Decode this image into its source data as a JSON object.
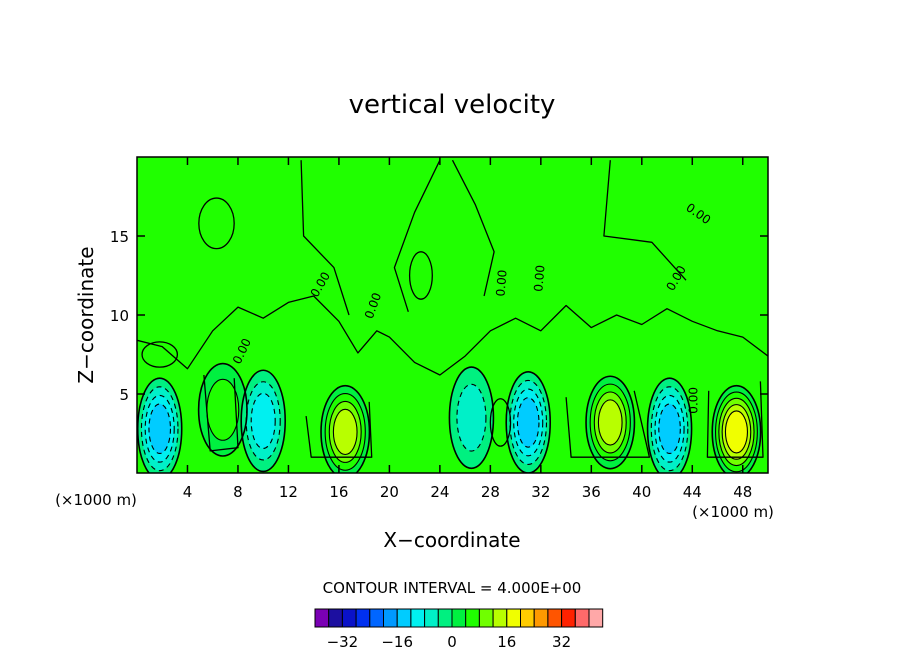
{
  "chart_data": {
    "type": "heatmap",
    "title": "vertical velocity",
    "xlabel": "X−coordinate",
    "ylabel": "Z−coordinate",
    "x_unit": "(×1000 m)",
    "z_unit": "(×1000 m)",
    "xlim": [
      0,
      50
    ],
    "ylim": [
      0,
      20
    ],
    "x_ticks": [
      4,
      8,
      12,
      16,
      20,
      24,
      28,
      32,
      36,
      40,
      44,
      48
    ],
    "y_ticks": [
      5,
      10,
      15
    ],
    "contour_interval_label": "CONTOUR INTERVAL = 4.000E+00",
    "contour_interval": 4,
    "zero_contour_label": "0.00",
    "colorbar": {
      "levels": [
        -40,
        -36,
        -32,
        -28,
        -24,
        -20,
        -16,
        -12,
        -8,
        -4,
        0,
        4,
        8,
        12,
        16,
        20,
        24,
        28,
        32,
        36,
        40
      ],
      "colors": [
        "#7a00b4",
        "#1c0fa0",
        "#0a12c8",
        "#0030f0",
        "#0066ff",
        "#0099ff",
        "#00ccff",
        "#00f0f0",
        "#00f0c8",
        "#00f080",
        "#00f040",
        "#20ff00",
        "#70ff00",
        "#b8ff00",
        "#f0ff00",
        "#ffcc00",
        "#ff9900",
        "#ff5500",
        "#ff2200",
        "#ff6a6a",
        "#ffa8a8"
      ],
      "tick_values": [
        -32,
        -16,
        0,
        16,
        32
      ],
      "tick_labels": [
        "−32",
        "−16",
        "0",
        "16",
        "32"
      ]
    },
    "features": [
      {
        "kind": "updraft",
        "x": 16.5,
        "z": 2.6,
        "peak": 10
      },
      {
        "kind": "updraft",
        "x": 37.5,
        "z": 3.2,
        "peak": 12
      },
      {
        "kind": "updraft",
        "x": 47.5,
        "z": 2.6,
        "peak": 16
      },
      {
        "kind": "updraft",
        "x": 6.8,
        "z": 4.0,
        "peak": 4
      },
      {
        "kind": "downdraft",
        "x": 1.8,
        "z": 2.8,
        "peak": -12
      },
      {
        "kind": "downdraft",
        "x": 10.0,
        "z": 3.3,
        "peak": -8
      },
      {
        "kind": "downdraft",
        "x": 31.0,
        "z": 3.2,
        "peak": -10
      },
      {
        "kind": "downdraft",
        "x": 42.2,
        "z": 2.8,
        "peak": -12
      },
      {
        "kind": "downdraft",
        "x": 26.5,
        "z": 3.5,
        "peak": -4
      }
    ]
  }
}
